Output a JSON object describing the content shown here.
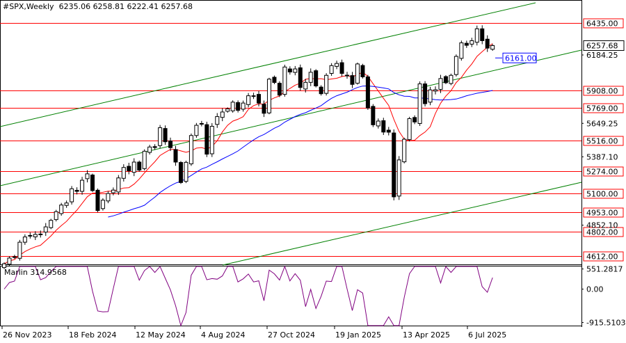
{
  "header": {
    "symbol_timeframe": "#SPX,Weekly",
    "ohlc": "6235.06 6258.81 6222.41 6257.68"
  },
  "indicator": {
    "label": "Marlin 314.9568",
    "axis_labels": [
      "551.2817",
      "0.00",
      "-915.5103"
    ]
  },
  "colors": {
    "background": "#ffffff",
    "candle": "#000000",
    "level_line": "#ff0000",
    "channel": "#008000",
    "ma_fast": "#ff0000",
    "ma_slow": "#0000ff",
    "oscillator": "#800080",
    "current_price_box": "#000000",
    "ma_label": "#0000ff"
  },
  "chart_data": {
    "type": "candlestick",
    "timeframe": "Weekly",
    "symbol": "#SPX",
    "ylim": [
      4540,
      6560
    ],
    "price_ticks": [
      "6184.25",
      "5649.25",
      "5387.10",
      "4852.10"
    ],
    "levels": [
      6435.0,
      5908.0,
      5769.0,
      5516.0,
      5274.0,
      5100.0,
      4953.0,
      4802.0,
      4612.0
    ],
    "current_price": 6257.68,
    "ma_price_label": 6161.0,
    "x_labels": [
      "26 Nov 2023",
      "18 Feb 2024",
      "12 May 2024",
      "4 Aug 2024",
      "27 Oct 2024",
      "19 Jan 2025",
      "13 Apr 2025",
      "6 Jul 2025"
    ],
    "closes": [
      4550,
      4595,
      4605,
      4719,
      4760,
      4770,
      4780,
      4783,
      4839,
      4890,
      4958,
      5010,
      5026,
      5137,
      5117,
      5204,
      5254,
      5123,
      4967,
      5048,
      5100,
      5127,
      5222,
      5304,
      5278,
      5346,
      5283,
      5431,
      5464,
      5460,
      5615,
      5505,
      5459,
      5346,
      5186,
      5344,
      5554,
      5634,
      5648,
      5408,
      5626,
      5702,
      5738,
      5762,
      5815,
      5751,
      5808,
      5865,
      5864,
      5808,
      5728,
      5995,
      5969,
      5870,
      6090,
      6051,
      6075,
      5930,
      5970,
      6049,
      5942,
      5881,
      6025,
      6101,
      6118,
      6040,
      6026,
      5954,
      6114,
      6013,
      5770,
      5638,
      5667,
      5581,
      5580,
      5074,
      5363,
      5525,
      5686,
      5660,
      5958,
      5803,
      5911,
      5912,
      6000,
      5967,
      6025,
      6173,
      6279,
      6260,
      6296,
      6389,
      6296,
      6238,
      6257.68
    ],
    "indicator": {
      "name": "Marlin",
      "value": 314.9568,
      "ylim": [
        -1000,
        620
      ]
    }
  }
}
